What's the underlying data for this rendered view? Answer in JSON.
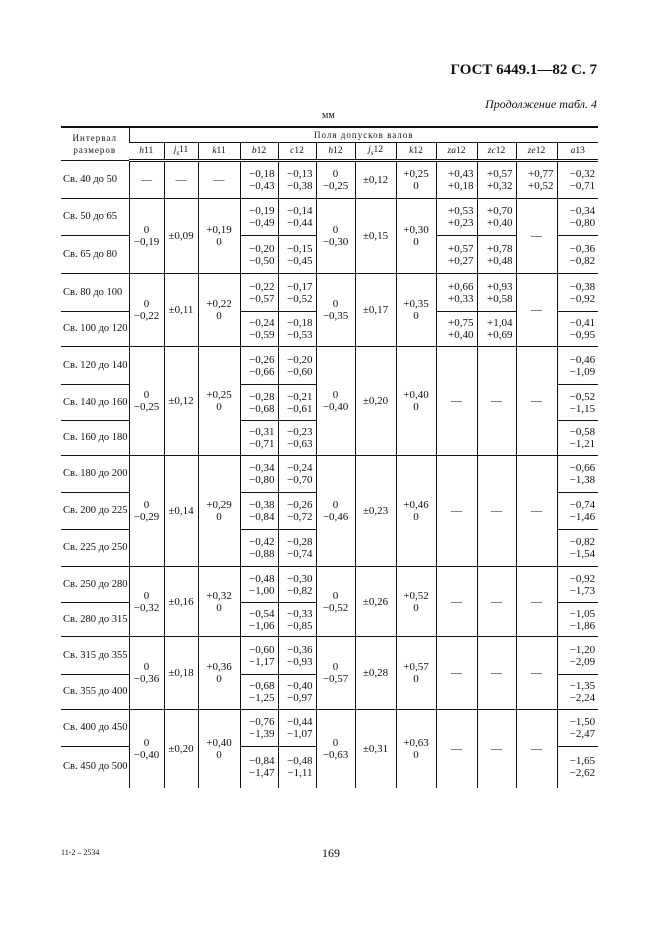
{
  "header": {
    "gost": "ГОСТ 6449.1—82 С. 7",
    "continuation": "Продолжение табл. 4",
    "unit": "мм"
  },
  "table": {
    "size_header": [
      "Интервал",
      "размеров"
    ],
    "super_header": "Поля допусков валов",
    "columns": [
      {
        "key": "h11",
        "letter": "h",
        "sub": "",
        "num": "11"
      },
      {
        "key": "js11",
        "letter": "j",
        "sub": "s",
        "num": "11"
      },
      {
        "key": "k11",
        "letter": "k",
        "sub": "",
        "num": "11"
      },
      {
        "key": "b12",
        "letter": "b",
        "sub": "",
        "num": "12"
      },
      {
        "key": "c12",
        "letter": "c",
        "sub": "",
        "num": "12"
      },
      {
        "key": "h12",
        "letter": "h",
        "sub": "",
        "num": "12"
      },
      {
        "key": "js12",
        "letter": "j",
        "sub": "s",
        "num": "12"
      },
      {
        "key": "k12",
        "letter": "k",
        "sub": "",
        "num": "12"
      },
      {
        "key": "za12",
        "letter": "za",
        "sub": "",
        "num": "12"
      },
      {
        "key": "zc12",
        "letter": "zc",
        "sub": "",
        "num": "12"
      },
      {
        "key": "ze12",
        "letter": "ze",
        "sub": "",
        "num": "12"
      },
      {
        "key": "a13",
        "letter": "a",
        "sub": "",
        "num": "13"
      }
    ],
    "groups": [
      {
        "merged": {},
        "rows": [
          {
            "size": "Св. 40 до 50",
            "h11": [
              "—"
            ],
            "js11": [
              "—"
            ],
            "k11": [
              "—"
            ],
            "b12": [
              "−0,18",
              "−0,43"
            ],
            "c12": [
              "−0,13",
              "−0,38"
            ],
            "h12": [
              "0",
              "−0,25"
            ],
            "js12": [
              "±0,12"
            ],
            "k12": [
              "+0,25",
              "0"
            ],
            "za12": [
              "+0,43",
              "+0,18"
            ],
            "zc12": [
              "+0,57",
              "+0,32"
            ],
            "ze12": [
              "+0,77",
              "+0,52"
            ],
            "a13": [
              "−0,32",
              "−0,71"
            ]
          }
        ]
      },
      {
        "merged": {
          "h11": [
            "0",
            "−0,19"
          ],
          "js11": [
            "±0,09"
          ],
          "k11": [
            "+0,19",
            "0"
          ],
          "h12": [
            "0",
            "−0,30"
          ],
          "js12": [
            "±0,15"
          ],
          "k12": [
            "+0,30",
            "0"
          ],
          "ze12": [
            "—"
          ]
        },
        "rows": [
          {
            "size": "Св. 50 до 65",
            "b12": [
              "−0,19",
              "−0,49"
            ],
            "c12": [
              "−0,14",
              "−0,44"
            ],
            "za12": [
              "+0,53",
              "+0,23"
            ],
            "zc12": [
              "+0,70",
              "+0,40"
            ],
            "a13": [
              "−0,34",
              "−0,80"
            ]
          },
          {
            "size": "Св. 65 до 80",
            "b12": [
              "−0,20",
              "−0,50"
            ],
            "c12": [
              "−0,15",
              "−0,45"
            ],
            "za12": [
              "+0,57",
              "+0,27"
            ],
            "zc12": [
              "+0,78",
              "+0,48"
            ],
            "a13": [
              "−0,36",
              "−0,82"
            ]
          }
        ]
      },
      {
        "merged": {
          "h11": [
            "0",
            "−0,22"
          ],
          "js11": [
            "±0,11"
          ],
          "k11": [
            "+0,22",
            "0"
          ],
          "h12": [
            "0",
            "−0,35"
          ],
          "js12": [
            "±0,17"
          ],
          "k12": [
            "+0,35",
            "0"
          ],
          "ze12": [
            "—"
          ]
        },
        "rows": [
          {
            "size": "Св. 80 до 100",
            "b12": [
              "−0,22",
              "−0,57"
            ],
            "c12": [
              "−0,17",
              "−0,52"
            ],
            "za12": [
              "+0,66",
              "+0,33"
            ],
            "zc12": [
              "+0,93",
              "+0,58"
            ],
            "a13": [
              "−0,38",
              "−0,92"
            ]
          },
          {
            "size": "Св. 100 до 120",
            "b12": [
              "−0,24",
              "−0,59"
            ],
            "c12": [
              "−0,18",
              "−0,53"
            ],
            "za12": [
              "+0,75",
              "+0,40"
            ],
            "zc12": [
              "+1,04",
              "+0,69"
            ],
            "a13": [
              "−0,41",
              "−0,95"
            ]
          }
        ]
      },
      {
        "merged": {
          "h11": [
            "0",
            "−0,25"
          ],
          "js11": [
            "±0,12"
          ],
          "k11": [
            "+0,25",
            "0"
          ],
          "h12": [
            "0",
            "−0,40"
          ],
          "js12": [
            "±0,20"
          ],
          "k12": [
            "+0,40",
            "0"
          ],
          "za12": [
            "—"
          ],
          "zc12": [
            "—"
          ],
          "ze12": [
            "—"
          ]
        },
        "rows": [
          {
            "size": "Св. 120 до 140",
            "b12": [
              "−0,26",
              "−0,66"
            ],
            "c12": [
              "−0,20",
              "−0,60"
            ],
            "a13": [
              "−0,46",
              "−1,09"
            ]
          },
          {
            "size": "Св. 140 до 160",
            "b12": [
              "−0,28",
              "−0,68"
            ],
            "c12": [
              "−0,21",
              "−0,61"
            ],
            "a13": [
              "−0,52",
              "−1,15"
            ]
          },
          {
            "size": "Св. 160 до 180",
            "b12": [
              "−0,31",
              "−0,71"
            ],
            "c12": [
              "−0,23",
              "−0,63"
            ],
            "a13": [
              "−0,58",
              "−1,21"
            ]
          }
        ]
      },
      {
        "merged": {
          "h11": [
            "0",
            "−0,29"
          ],
          "js11": [
            "±0,14"
          ],
          "k11": [
            "+0,29",
            "0"
          ],
          "h12": [
            "0",
            "−0,46"
          ],
          "js12": [
            "±0,23"
          ],
          "k12": [
            "+0,46",
            "0"
          ],
          "za12": [
            "—"
          ],
          "zc12": [
            "—"
          ],
          "ze12": [
            "—"
          ]
        },
        "rows": [
          {
            "size": "Св. 180 до 200",
            "b12": [
              "−0,34",
              "−0,80"
            ],
            "c12": [
              "−0,24",
              "−0,70"
            ],
            "a13": [
              "−0,66",
              "−1,38"
            ]
          },
          {
            "size": "Св. 200 до 225",
            "b12": [
              "−0,38",
              "−0,84"
            ],
            "c12": [
              "−0,26",
              "−0,72"
            ],
            "a13": [
              "−0,74",
              "−1,46"
            ]
          },
          {
            "size": "Св. 225 до 250",
            "b12": [
              "−0,42",
              "−0,88"
            ],
            "c12": [
              "−0,28",
              "−0,74"
            ],
            "a13": [
              "−0,82",
              "−1,54"
            ]
          }
        ]
      },
      {
        "merged": {
          "h11": [
            "0",
            "−0,32"
          ],
          "js11": [
            "±0,16"
          ],
          "k11": [
            "+0,32",
            "0"
          ],
          "h12": [
            "0",
            "−0,52"
          ],
          "js12": [
            "±0,26"
          ],
          "k12": [
            "+0,52",
            "0"
          ],
          "za12": [
            "—"
          ],
          "zc12": [
            "—"
          ],
          "ze12": [
            "—"
          ]
        },
        "rows": [
          {
            "size": "Св. 250 до 280",
            "b12": [
              "−0,48",
              "−1,00"
            ],
            "c12": [
              "−0,30",
              "−0,82"
            ],
            "a13": [
              "−0,92",
              "−1,73"
            ]
          },
          {
            "size": "Св. 280 до 315",
            "b12": [
              "−0,54",
              "−1,06"
            ],
            "c12": [
              "−0,33",
              "−0,85"
            ],
            "a13": [
              "−1,05",
              "−1,86"
            ]
          }
        ]
      },
      {
        "merged": {
          "h11": [
            "0",
            "−0,36"
          ],
          "js11": [
            "±0,18"
          ],
          "k11": [
            "+0,36",
            "0"
          ],
          "h12": [
            "0",
            "−0,57"
          ],
          "js12": [
            "±0,28"
          ],
          "k12": [
            "+0,57",
            "0"
          ],
          "za12": [
            "—"
          ],
          "zc12": [
            "—"
          ],
          "ze12": [
            "—"
          ]
        },
        "rows": [
          {
            "size": "Св. 315 до 355",
            "b12": [
              "−0,60",
              "−1,17"
            ],
            "c12": [
              "−0,36",
              "−0,93"
            ],
            "a13": [
              "−1,20",
              "−2,09"
            ]
          },
          {
            "size": "Св. 355 до 400",
            "b12": [
              "−0,68",
              "−1,25"
            ],
            "c12": [
              "−0,40",
              "−0,97"
            ],
            "a13": [
              "−1,35",
              "−2,24"
            ]
          }
        ]
      },
      {
        "merged": {
          "h11": [
            "0",
            "−0,40"
          ],
          "js11": [
            "±0,20"
          ],
          "k11": [
            "+0,40",
            "0"
          ],
          "h12": [
            "0",
            "−0,63"
          ],
          "js12": [
            "±0,31"
          ],
          "k12": [
            "+0,63",
            "0"
          ],
          "za12": [
            "—"
          ],
          "zc12": [
            "—"
          ],
          "ze12": [
            "—"
          ]
        },
        "rows": [
          {
            "size": "Св. 400 до 450",
            "b12": [
              "−0,76",
              "−1,39"
            ],
            "c12": [
              "−0,44",
              "−1,07"
            ],
            "a13": [
              "−1,50",
              "−2,47"
            ]
          },
          {
            "size": "Св. 450 до 500",
            "b12": [
              "−0,84",
              "−1,47"
            ],
            "c12": [
              "−0,48",
              "−1,11"
            ],
            "a13": [
              "−1,65",
              "−2,62"
            ]
          }
        ]
      }
    ]
  },
  "footer": {
    "code": "11-2 – 2534",
    "page_number": "169"
  }
}
